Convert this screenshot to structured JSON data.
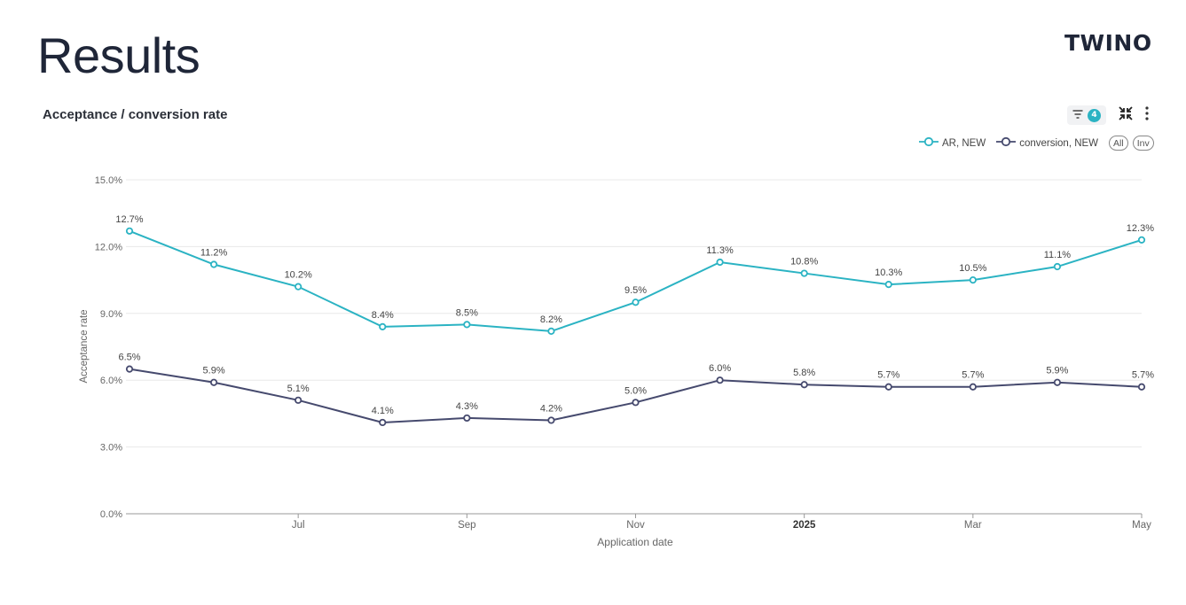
{
  "slide": {
    "title": "Results",
    "brand": "TWINO"
  },
  "toolbar": {
    "filter_count": "4",
    "filter_icon": "filter-icon",
    "collapse_icon": "collapse-icon",
    "more_icon": "more-vertical-icon"
  },
  "legend": {
    "pill_all": "All",
    "pill_inv": "Inv"
  },
  "colors": {
    "ar": "#2bb3c3",
    "conversion": "#464a6e",
    "grid": "#e8e8e8",
    "axis": "#777777"
  },
  "chart_data": {
    "type": "line",
    "title": "Acceptance / conversion rate",
    "xlabel": "Application date",
    "ylabel": "Acceptance rate",
    "x": [
      "2024-05",
      "2024-06",
      "2024-07",
      "2024-08",
      "2024-09",
      "2024-10",
      "2024-11",
      "2024-12",
      "2025-01",
      "2025-02",
      "2025-03",
      "2025-04",
      "2025-05"
    ],
    "x_ticks": [
      {
        "x": "2024-07",
        "label": "Jul",
        "bold": false
      },
      {
        "x": "2024-09",
        "label": "Sep",
        "bold": false
      },
      {
        "x": "2024-11",
        "label": "Nov",
        "bold": false
      },
      {
        "x": "2025-01",
        "label": "2025",
        "bold": true
      },
      {
        "x": "2025-03",
        "label": "Mar",
        "bold": false
      },
      {
        "x": "2025-05",
        "label": "May",
        "bold": false
      }
    ],
    "y_ticks": [
      "0.0%",
      "3.0%",
      "6.0%",
      "9.0%",
      "12.0%",
      "15.0%"
    ],
    "ylim": [
      0,
      15
    ],
    "grid": true,
    "legend_position": "top-right",
    "series": [
      {
        "name": "AR, NEW",
        "color": "#2bb3c3",
        "values": [
          12.7,
          11.2,
          10.2,
          8.4,
          8.5,
          8.2,
          9.5,
          11.3,
          10.8,
          10.3,
          10.5,
          11.1,
          12.3
        ],
        "labels": [
          "12.7%",
          "11.2%",
          "10.2%",
          "8.4%",
          "8.5%",
          "8.2%",
          "9.5%",
          "11.3%",
          "10.8%",
          "10.3%",
          "10.5%",
          "11.1%",
          "12.3%"
        ]
      },
      {
        "name": "conversion, NEW",
        "color": "#464a6e",
        "values": [
          6.5,
          5.9,
          5.1,
          4.1,
          4.3,
          4.2,
          5.0,
          6.0,
          5.8,
          5.7,
          5.7,
          5.9,
          5.7
        ],
        "labels": [
          "6.5%",
          "5.9%",
          "5.1%",
          "4.1%",
          "4.3%",
          "4.2%",
          "5.0%",
          "6.0%",
          "5.8%",
          "5.7%",
          "5.7%",
          "5.9%",
          "5.7%"
        ]
      }
    ]
  }
}
